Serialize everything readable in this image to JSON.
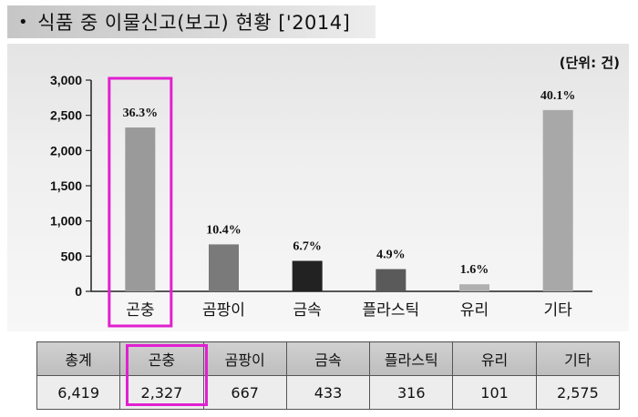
{
  "title": "식품 중 이물신고(보고) 현황 ['2014]",
  "unit": "(단위: 건)",
  "colors": {
    "highlight": "#e020d0",
    "bars": [
      "#9a9a9a",
      "#7a7a7a",
      "#222222",
      "#5a5a5a",
      "#b0b0b0",
      "#a8a8a8"
    ]
  },
  "chart_data": {
    "type": "bar",
    "categories": [
      "곤충",
      "곰팡이",
      "금속",
      "플라스틱",
      "유리",
      "기타"
    ],
    "values": [
      2327,
      667,
      433,
      316,
      101,
      2575
    ],
    "data_labels": [
      "36.3%",
      "10.4%",
      "6.7%",
      "4.9%",
      "1.6%",
      "40.1%"
    ],
    "ylim": [
      0,
      3000
    ],
    "yticks": [
      "0",
      "500",
      "1,000",
      "1,500",
      "2,000",
      "2,500",
      "3,000"
    ],
    "ytick_values": [
      0,
      500,
      1000,
      1500,
      2000,
      2500,
      3000
    ],
    "highlighted_category": "곤충",
    "grid": false,
    "legend": "none"
  },
  "table": {
    "headers": [
      "총계",
      "곤충",
      "곰팡이",
      "금속",
      "플라스틱",
      "유리",
      "기타"
    ],
    "values": [
      "6,419",
      "2,327",
      "667",
      "433",
      "316",
      "101",
      "2,575"
    ]
  }
}
